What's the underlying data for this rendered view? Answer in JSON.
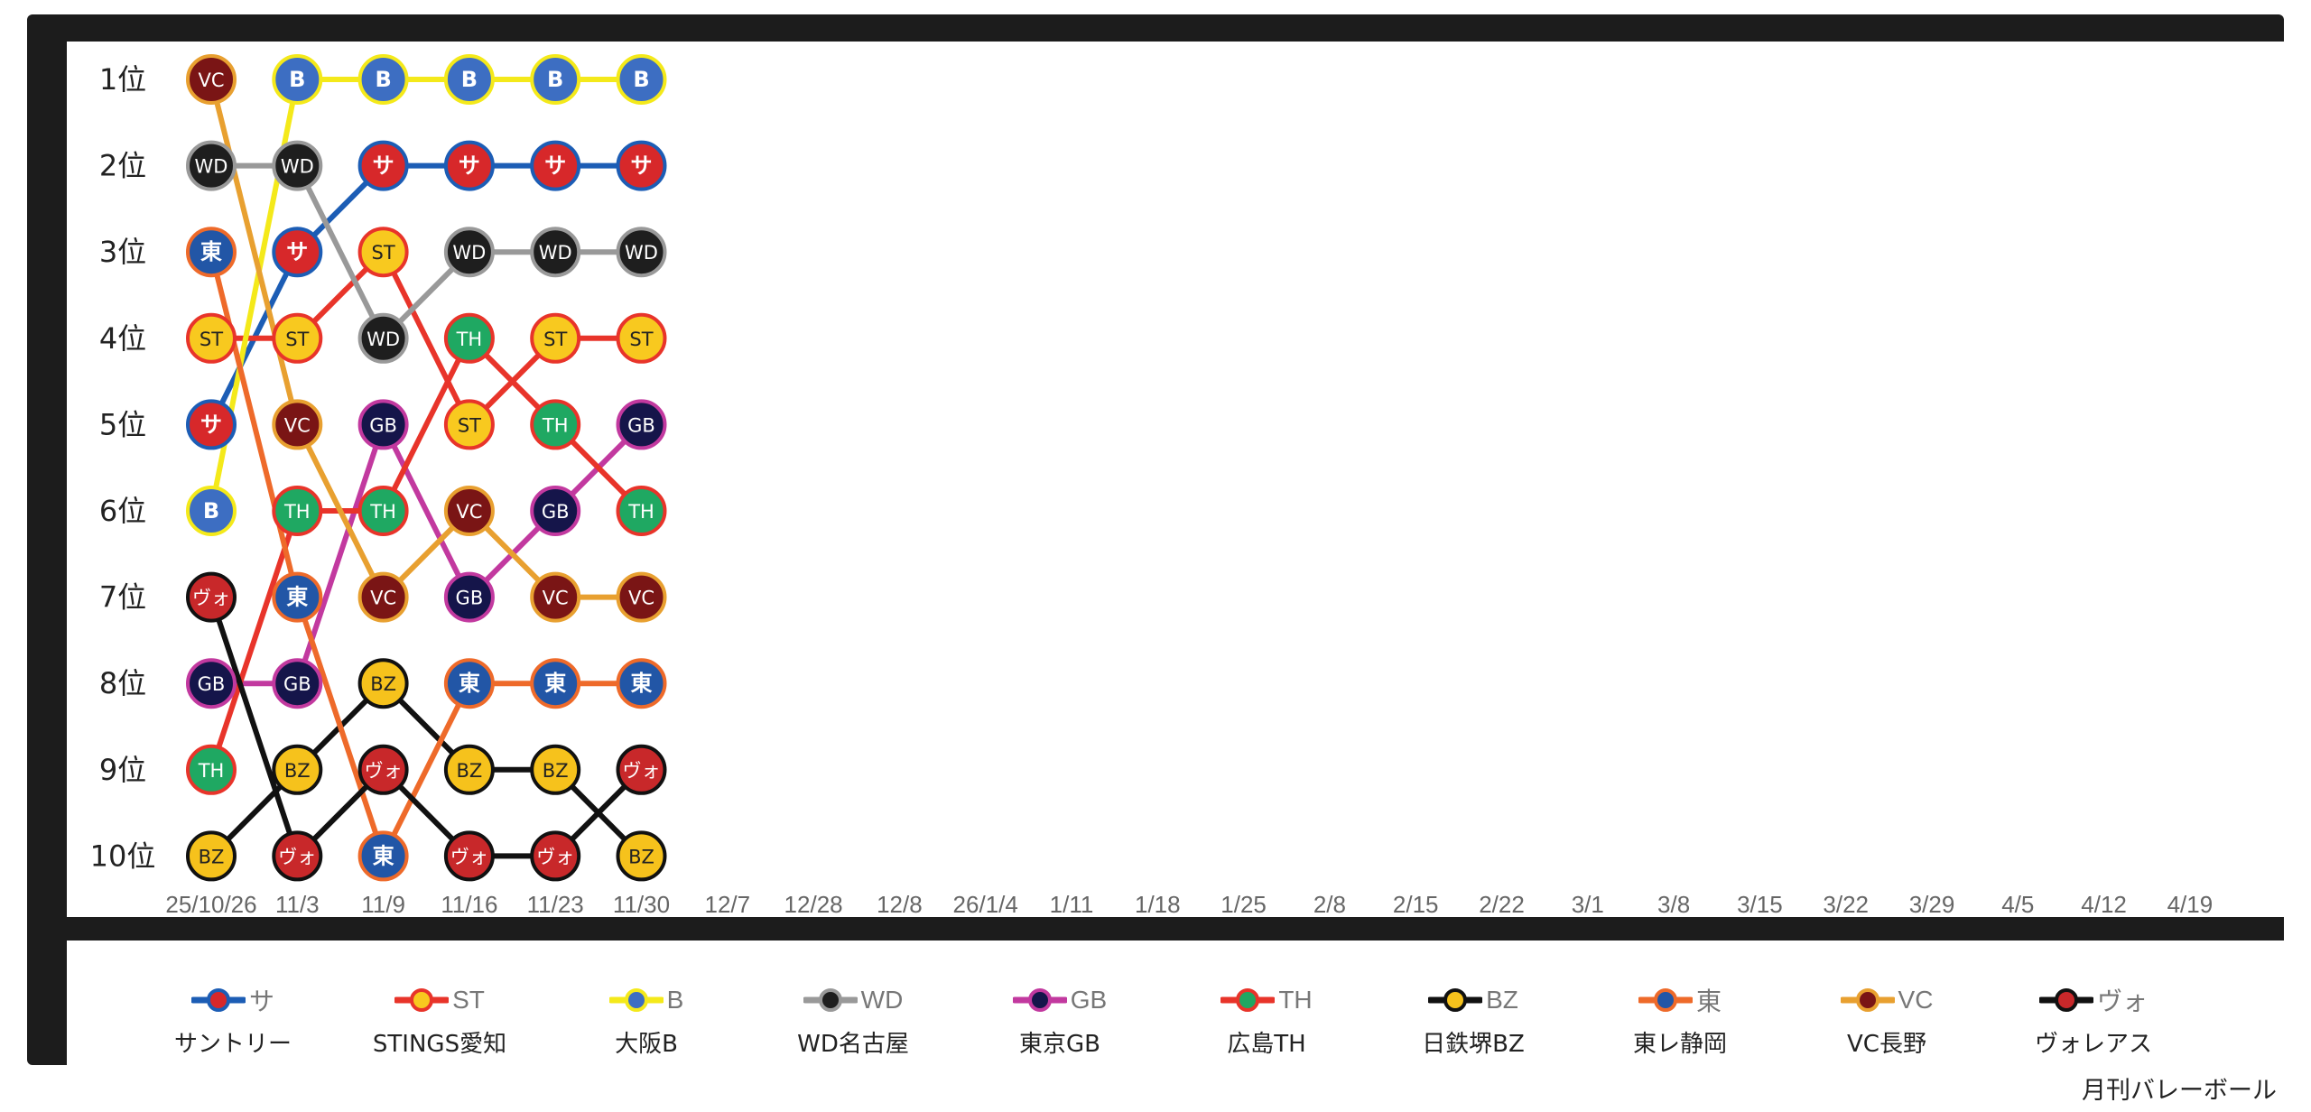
{
  "chart_data": {
    "type": "line",
    "subtype": "rank-bump",
    "x": [
      "25/10/26",
      "11/3",
      "11/9",
      "11/16",
      "11/23",
      "11/30",
      "12/7",
      "12/28",
      "12/8",
      "26/1/4",
      "1/11",
      "1/18",
      "1/25",
      "2/8",
      "2/15",
      "2/22",
      "3/1",
      "3/8",
      "3/15",
      "3/22",
      "3/29",
      "4/5",
      "4/12",
      "4/19"
    ],
    "rank_labels": [
      "1位",
      "2位",
      "3位",
      "4位",
      "5位",
      "6位",
      "7位",
      "8位",
      "9位",
      "10位"
    ],
    "ylim": [
      1,
      10
    ],
    "y_inverted": true,
    "legend_position": "bottom",
    "series": [
      {
        "short": "サ",
        "name": "サントリー",
        "line": "#1c5db5",
        "fill": "#d7282a",
        "text": "#ffffff",
        "ranks": [
          5,
          3,
          2,
          2,
          2,
          2
        ]
      },
      {
        "short": "ST",
        "name": "STINGS愛知",
        "line": "#e8342a",
        "fill": "#f8c91f",
        "text": "#222222",
        "ranks": [
          4,
          4,
          3,
          5,
          4,
          4
        ]
      },
      {
        "short": "B",
        "name": "大阪B",
        "line": "#f4e91a",
        "fill": "#3d6ec2",
        "text": "#ffffff",
        "ranks": [
          6,
          1,
          1,
          1,
          1,
          1
        ]
      },
      {
        "short": "WD",
        "name": "WD名古屋",
        "line": "#999999",
        "fill": "#1e1e1e",
        "text": "#ffffff",
        "ranks": [
          2,
          2,
          4,
          3,
          3,
          3
        ]
      },
      {
        "short": "GB",
        "name": "東京GB",
        "line": "#c2399f",
        "fill": "#15154a",
        "text": "#ffffff",
        "ranks": [
          8,
          8,
          5,
          7,
          6,
          5
        ]
      },
      {
        "short": "TH",
        "name": "広島TH",
        "line": "#e8342a",
        "fill": "#1fa862",
        "text": "#ffffff",
        "ranks": [
          9,
          6,
          6,
          4,
          5,
          6
        ]
      },
      {
        "short": "BZ",
        "name": "日鉄堺BZ",
        "line": "#111111",
        "fill": "#f6c21c",
        "text": "#222222",
        "ranks": [
          10,
          9,
          8,
          9,
          9,
          10
        ]
      },
      {
        "short": "東",
        "name": "東レ静岡",
        "line": "#ee6a2a",
        "fill": "#2256a6",
        "text": "#ffffff",
        "ranks": [
          3,
          7,
          10,
          8,
          8,
          8
        ]
      },
      {
        "short": "VC",
        "name": "VC長野",
        "line": "#e8a030",
        "fill": "#7a1515",
        "text": "#ffffff",
        "ranks": [
          1,
          5,
          7,
          6,
          7,
          7
        ]
      },
      {
        "short": "ヴォ",
        "name": "ヴォレアス",
        "line": "#111111",
        "fill": "#c8282a",
        "text": "#ffffff",
        "ranks": [
          7,
          10,
          9,
          10,
          10,
          9
        ]
      }
    ]
  },
  "credit": "月刊バレーボール"
}
